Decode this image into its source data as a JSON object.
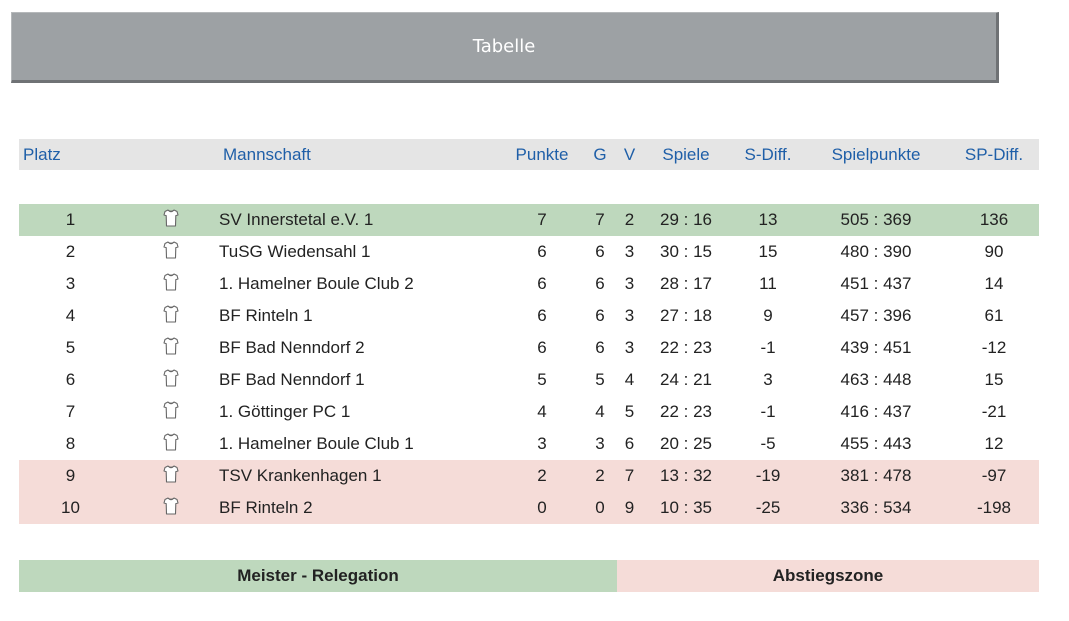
{
  "title": "Tabelle",
  "columns": {
    "platz": "Platz",
    "mannschaft": "Mannschaft",
    "punkte": "Punkte",
    "g": "G",
    "v": "V",
    "spiele": "Spiele",
    "sdiff": "S-Diff.",
    "spielpunkte": "Spielpunkte",
    "spdiff": "SP-Diff."
  },
  "rows": [
    {
      "platz": "1",
      "team": "SV Innerstetal e.V. 1",
      "punkte": "7",
      "g": "7",
      "v": "2",
      "spiele": "29 : 16",
      "sdiff": "13",
      "spielpunkte": "505 : 369",
      "spdiff": "136",
      "zone": "meister"
    },
    {
      "platz": "2",
      "team": "TuSG Wiedensahl 1",
      "punkte": "6",
      "g": "6",
      "v": "3",
      "spiele": "30 : 15",
      "sdiff": "15",
      "spielpunkte": "480 : 390",
      "spdiff": "90",
      "zone": ""
    },
    {
      "platz": "3",
      "team": "1. Hamelner Boule Club 2",
      "punkte": "6",
      "g": "6",
      "v": "3",
      "spiele": "28 : 17",
      "sdiff": "11",
      "spielpunkte": "451 : 437",
      "spdiff": "14",
      "zone": ""
    },
    {
      "platz": "4",
      "team": "BF Rinteln 1",
      "punkte": "6",
      "g": "6",
      "v": "3",
      "spiele": "27 : 18",
      "sdiff": "9",
      "spielpunkte": "457 : 396",
      "spdiff": "61",
      "zone": ""
    },
    {
      "platz": "5",
      "team": "BF Bad Nenndorf 2",
      "punkte": "6",
      "g": "6",
      "v": "3",
      "spiele": "22 : 23",
      "sdiff": "-1",
      "spielpunkte": "439 : 451",
      "spdiff": "-12",
      "zone": ""
    },
    {
      "platz": "6",
      "team": "BF Bad Nenndorf 1",
      "punkte": "5",
      "g": "5",
      "v": "4",
      "spiele": "24 : 21",
      "sdiff": "3",
      "spielpunkte": "463 : 448",
      "spdiff": "15",
      "zone": ""
    },
    {
      "platz": "7",
      "team": "1. Göttinger PC 1",
      "punkte": "4",
      "g": "4",
      "v": "5",
      "spiele": "22 : 23",
      "sdiff": "-1",
      "spielpunkte": "416 : 437",
      "spdiff": "-21",
      "zone": ""
    },
    {
      "platz": "8",
      "team": "1. Hamelner Boule Club 1",
      "punkte": "3",
      "g": "3",
      "v": "6",
      "spiele": "20 : 25",
      "sdiff": "-5",
      "spielpunkte": "455 : 443",
      "spdiff": "12",
      "zone": ""
    },
    {
      "platz": "9",
      "team": "TSV Krankenhagen 1",
      "punkte": "2",
      "g": "2",
      "v": "7",
      "spiele": "13 : 32",
      "sdiff": "-19",
      "spielpunkte": "381 : 478",
      "spdiff": "-97",
      "zone": "abstieg"
    },
    {
      "platz": "10",
      "team": "BF Rinteln 2",
      "punkte": "0",
      "g": "0",
      "v": "9",
      "spiele": "10 : 35",
      "sdiff": "-25",
      "spielpunkte": "336 : 534",
      "spdiff": "-198",
      "zone": "abstieg"
    }
  ],
  "legend": {
    "meister": "Meister - Relegation",
    "abstieg": "Abstiegszone"
  },
  "icons": {
    "team": "shirt-icon"
  },
  "colors": {
    "header_text": "#1f5fa8",
    "meister_bg": "#bed8bd",
    "abstieg_bg": "#f5dcd8",
    "title_bg": "#9da1a4"
  }
}
